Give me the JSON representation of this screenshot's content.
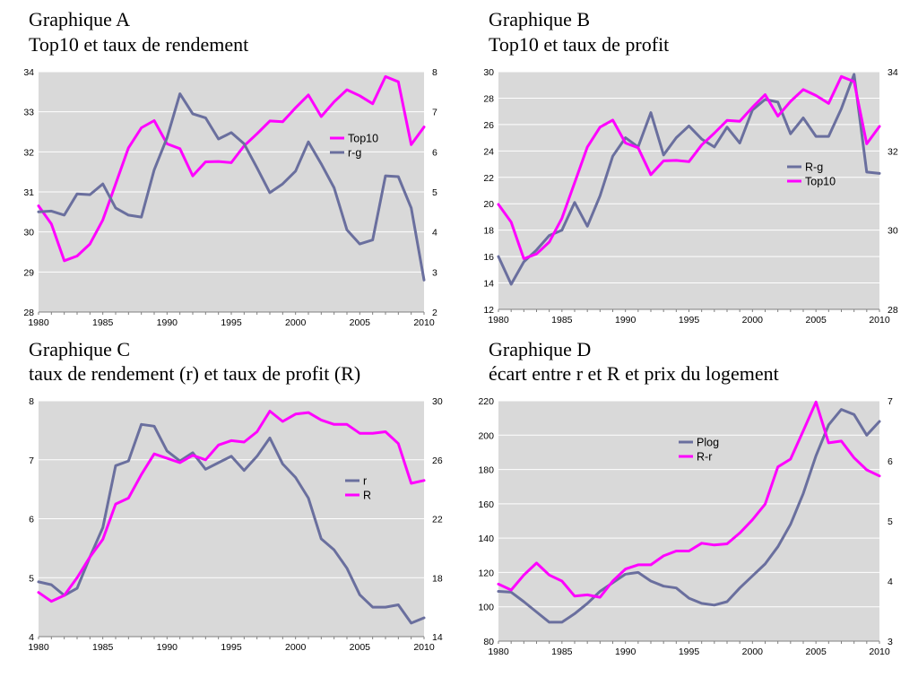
{
  "colors": {
    "series_blue": "#6A6F9E",
    "series_magenta": "#FF00FF",
    "plot_bg": "#D9D9D9",
    "grid": "#FFFFFF"
  },
  "chart_data": [
    {
      "type": "line",
      "title_line1": "Graphique A",
      "title_line2": "Top10 et taux de rendement",
      "x": [
        1980,
        1981,
        1982,
        1983,
        1984,
        1985,
        1986,
        1987,
        1988,
        1989,
        1990,
        1991,
        1992,
        1993,
        1994,
        1995,
        1996,
        1997,
        1998,
        1999,
        2000,
        2001,
        2002,
        2003,
        2004,
        2005,
        2006,
        2007,
        2008,
        2009,
        2010
      ],
      "xticks": [
        "1980",
        "1985",
        "1990",
        "1995",
        "2000",
        "2005",
        "2010"
      ],
      "ylim_left": [
        28,
        34
      ],
      "yticks_left": [
        "28",
        "29",
        "30",
        "31",
        "32",
        "33",
        "34"
      ],
      "ylim_right": [
        2,
        8
      ],
      "yticks_right": [
        "2",
        "3",
        "4",
        "5",
        "6",
        "7",
        "8"
      ],
      "grid": true,
      "legend_position": "right-middle",
      "series": [
        {
          "name": "Top10",
          "axis": "left",
          "color": "#FF00FF",
          "values": [
            30.65,
            30.2,
            29.28,
            29.4,
            29.7,
            30.3,
            31.2,
            32.1,
            32.6,
            32.78,
            32.2,
            32.08,
            31.4,
            31.75,
            31.76,
            31.73,
            32.15,
            32.45,
            32.77,
            32.75,
            33.1,
            33.42,
            32.88,
            33.25,
            33.55,
            33.4,
            33.2,
            33.88,
            33.75,
            32.18,
            32.62
          ]
        },
        {
          "name": "r-g",
          "axis": "right",
          "color": "#6A6F9E",
          "values": [
            4.5,
            4.52,
            4.42,
            4.95,
            4.93,
            5.2,
            4.6,
            4.42,
            4.37,
            5.55,
            6.35,
            7.45,
            6.95,
            6.85,
            6.32,
            6.48,
            6.2,
            5.6,
            4.98,
            5.2,
            5.52,
            6.25,
            5.7,
            5.1,
            4.05,
            3.7,
            3.8,
            5.4,
            5.38,
            4.6,
            2.8
          ]
        }
      ]
    },
    {
      "type": "line",
      "title_line1": "Graphique B",
      "title_line2": "Top10 et taux de profit",
      "x": [
        1980,
        1981,
        1982,
        1983,
        1984,
        1985,
        1986,
        1987,
        1988,
        1989,
        1990,
        1991,
        1992,
        1993,
        1994,
        1995,
        1996,
        1997,
        1998,
        1999,
        2000,
        2001,
        2002,
        2003,
        2004,
        2005,
        2006,
        2007,
        2008,
        2009,
        2010
      ],
      "xticks": [
        "1980",
        "1985",
        "1990",
        "1995",
        "2000",
        "2005",
        "2010"
      ],
      "ylim_left": [
        12,
        30
      ],
      "yticks_left": [
        "12",
        "14",
        "16",
        "18",
        "20",
        "22",
        "24",
        "26",
        "28",
        "30"
      ],
      "ylim_right": [
        28,
        34
      ],
      "yticks_right": [
        "28",
        "30",
        "32",
        "34"
      ],
      "grid": true,
      "legend_position": "right-middle",
      "series": [
        {
          "name": "R-g",
          "axis": "left",
          "color": "#6A6F9E",
          "values": [
            16.0,
            13.9,
            15.6,
            16.5,
            17.6,
            18.0,
            20.1,
            18.3,
            20.6,
            23.6,
            25.0,
            24.3,
            26.9,
            23.7,
            25.0,
            25.9,
            24.9,
            24.3,
            25.8,
            24.6,
            27.1,
            27.9,
            27.7,
            25.3,
            26.5,
            25.1,
            25.1,
            27.2,
            29.8,
            22.4,
            22.3
          ]
        },
        {
          "name": "Top10",
          "axis": "right",
          "color": "#FF00FF",
          "values": [
            30.65,
            30.2,
            29.28,
            29.4,
            29.7,
            30.3,
            31.2,
            32.1,
            32.6,
            32.78,
            32.2,
            32.08,
            31.4,
            31.75,
            31.76,
            31.73,
            32.15,
            32.45,
            32.77,
            32.75,
            33.1,
            33.42,
            32.88,
            33.25,
            33.55,
            33.4,
            33.2,
            33.88,
            33.75,
            32.18,
            32.62
          ]
        }
      ]
    },
    {
      "type": "line",
      "title_line1": "Graphique C",
      "title_line2": "taux de rendement (r) et taux de profit (R)",
      "x": [
        1980,
        1981,
        1982,
        1983,
        1984,
        1985,
        1986,
        1987,
        1988,
        1989,
        1990,
        1991,
        1992,
        1993,
        1994,
        1995,
        1996,
        1997,
        1998,
        1999,
        2000,
        2001,
        2002,
        2003,
        2004,
        2005,
        2006,
        2007,
        2008,
        2009,
        2010
      ],
      "xticks": [
        "1980",
        "1985",
        "1990",
        "1995",
        "2000",
        "2005",
        "2010"
      ],
      "ylim_left": [
        4,
        8
      ],
      "yticks_left": [
        "4",
        "5",
        "6",
        "7",
        "8"
      ],
      "ylim_right": [
        14,
        30
      ],
      "yticks_right": [
        "14",
        "18",
        "22",
        "26",
        "30"
      ],
      "grid": true,
      "legend_position": "right-middle",
      "series": [
        {
          "name": "r",
          "axis": "left",
          "color": "#6A6F9E",
          "values": [
            4.93,
            4.88,
            4.7,
            4.82,
            5.35,
            5.85,
            6.9,
            6.98,
            7.6,
            7.57,
            7.15,
            6.98,
            7.12,
            6.84,
            6.95,
            7.06,
            6.82,
            7.06,
            7.37,
            6.93,
            6.7,
            6.35,
            5.66,
            5.47,
            5.16,
            4.71,
            4.5,
            4.5,
            4.54,
            4.23,
            4.32
          ]
        },
        {
          "name": "R",
          "axis": "right",
          "color": "#FF00FF",
          "values": [
            17.0,
            16.4,
            16.8,
            18.0,
            19.4,
            20.6,
            23.0,
            23.4,
            25.0,
            26.4,
            26.1,
            25.8,
            26.3,
            26.0,
            27.0,
            27.3,
            27.2,
            27.9,
            29.3,
            28.6,
            29.1,
            29.2,
            28.7,
            28.4,
            28.4,
            27.8,
            27.8,
            27.9,
            27.1,
            24.4,
            24.6
          ]
        }
      ]
    },
    {
      "type": "line",
      "title_line1": "Graphique D",
      "title_line2": "écart entre r et R et prix du logement",
      "x": [
        1980,
        1981,
        1982,
        1983,
        1984,
        1985,
        1986,
        1987,
        1988,
        1989,
        1990,
        1991,
        1992,
        1993,
        1994,
        1995,
        1996,
        1997,
        1998,
        1999,
        2000,
        2001,
        2002,
        2003,
        2004,
        2005,
        2006,
        2007,
        2008,
        2009,
        2010
      ],
      "xticks": [
        "1980",
        "1985",
        "1990",
        "1995",
        "2000",
        "2005",
        "2010"
      ],
      "ylim_left": [
        80,
        220
      ],
      "yticks_left": [
        "80",
        "100",
        "120",
        "140",
        "160",
        "180",
        "200",
        "220"
      ],
      "ylim_right": [
        3,
        7
      ],
      "yticks_right": [
        "3",
        "4",
        "5",
        "6",
        "7"
      ],
      "grid": true,
      "legend_position": "top-middle",
      "series": [
        {
          "name": "Plog",
          "axis": "left",
          "color": "#6A6F9E",
          "values": [
            109,
            108.5,
            103,
            97,
            91,
            91,
            96,
            102,
            109,
            114,
            119,
            120,
            115,
            112,
            111,
            105,
            102,
            101,
            103,
            111,
            118,
            125,
            135,
            148,
            166,
            188,
            206,
            215,
            212,
            200,
            208
          ]
        },
        {
          "name": "R-r",
          "axis": "right",
          "color": "#FF00FF",
          "values": [
            3.95,
            3.85,
            4.1,
            4.3,
            4.1,
            4.0,
            3.75,
            3.77,
            3.73,
            4.0,
            4.2,
            4.27,
            4.27,
            4.42,
            4.5,
            4.5,
            4.63,
            4.6,
            4.62,
            4.8,
            5.02,
            5.28,
            5.9,
            6.03,
            6.5,
            6.98,
            6.3,
            6.33,
            6.05,
            5.85,
            5.75
          ]
        }
      ]
    }
  ]
}
